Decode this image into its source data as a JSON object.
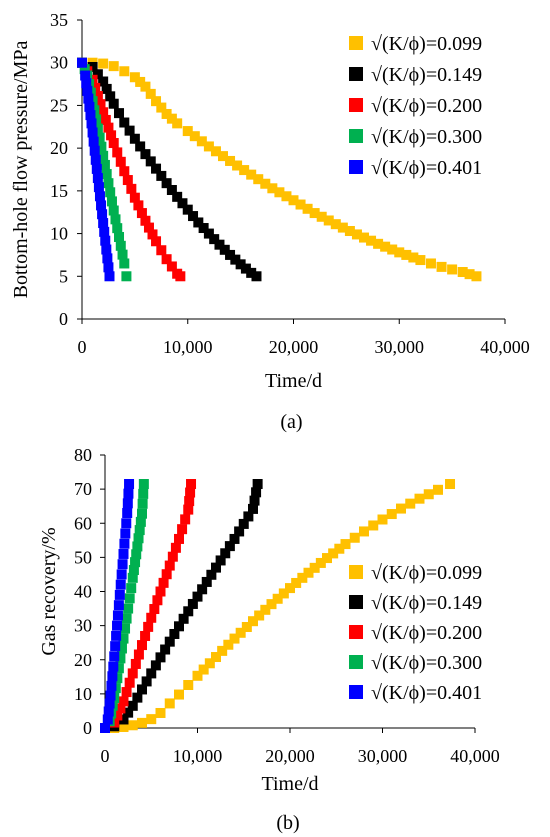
{
  "figure": {
    "panels": [
      {
        "caption": "(a)",
        "xlabel": "Time/d",
        "ylabel": "Bottom-hole flow pressure/MPa",
        "xticks": [
          "0",
          "10,000",
          "20,000",
          "30,000",
          "40,000"
        ],
        "yticks": [
          "0",
          "5",
          "10",
          "15",
          "20",
          "25",
          "30",
          "35"
        ]
      },
      {
        "caption": "(b)",
        "xlabel": "Time/d",
        "ylabel": "Gas recovery/%",
        "xticks": [
          "0",
          "10,000",
          "20,000",
          "30,000",
          "40,000"
        ],
        "yticks": [
          "0",
          "10",
          "20",
          "30",
          "40",
          "50",
          "60",
          "70",
          "80"
        ]
      }
    ]
  },
  "chart_data": [
    {
      "type": "scatter",
      "title": "",
      "caption": "(a)",
      "xlabel": "Time/d",
      "ylabel": "Bottom-hole flow pressure/MPa",
      "xlim": [
        0,
        40000
      ],
      "ylim": [
        0,
        35
      ],
      "grid": false,
      "legend_position": "top-right",
      "series": [
        {
          "name": "√(K/ϕ)=0.099",
          "color": "#FFC000",
          "x": [
            0,
            1000,
            2000,
            3000,
            4000,
            5000,
            6000,
            7000,
            8000,
            9000,
            10000,
            12000,
            14000,
            16000,
            18000,
            20000,
            22000,
            24000,
            26000,
            28000,
            30000,
            32000,
            34000,
            36000,
            37300
          ],
          "y": [
            30,
            30,
            29.9,
            29.6,
            29.0,
            28.3,
            27.2,
            25.5,
            24.0,
            22.9,
            22.0,
            20.2,
            18.5,
            16.9,
            15.3,
            13.9,
            12.4,
            11.1,
            9.9,
            8.8,
            7.8,
            6.9,
            6.1,
            5.5,
            5.0
          ]
        },
        {
          "name": "√(K/ϕ)=0.149",
          "color": "#000000",
          "x": [
            0,
            1000,
            2000,
            3000,
            4000,
            5000,
            6000,
            7000,
            8000,
            9000,
            10000,
            11000,
            12000,
            13000,
            14000,
            15000,
            16000,
            16500
          ],
          "y": [
            30,
            29.5,
            27.8,
            25.2,
            23.0,
            21.1,
            19.3,
            17.6,
            15.9,
            14.3,
            12.8,
            11.3,
            10.0,
            8.7,
            7.5,
            6.4,
            5.4,
            5.0
          ]
        },
        {
          "name": "√(K/ϕ)=0.200",
          "color": "#FF0000",
          "x": [
            0,
            1000,
            2000,
            3000,
            4000,
            5000,
            6000,
            7000,
            8000,
            9000,
            9300
          ],
          "y": [
            30,
            28.0,
            24.2,
            20.6,
            17.3,
            14.2,
            11.5,
            9.1,
            7.0,
            5.3,
            5.0
          ]
        },
        {
          "name": "√(K/ϕ)=0.300",
          "color": "#00B050",
          "x": [
            0,
            500,
            1000,
            1500,
            2000,
            2500,
            3000,
            3500,
            4000,
            4200
          ],
          "y": [
            30,
            28.5,
            25.5,
            22.3,
            19.1,
            15.9,
            12.7,
            9.6,
            6.5,
            5.0
          ]
        },
        {
          "name": "√(K/ϕ)=0.401",
          "color": "#0000FF",
          "x": [
            0,
            300,
            600,
            900,
            1200,
            1500,
            1800,
            2100,
            2400,
            2600
          ],
          "y": [
            30,
            28.5,
            25.8,
            22.9,
            19.7,
            16.5,
            13.3,
            10.2,
            7.1,
            5.0
          ]
        }
      ]
    },
    {
      "type": "scatter",
      "title": "",
      "caption": "(b)",
      "xlabel": "Time/d",
      "ylabel": "Gas recovery/%",
      "xlim": [
        0,
        40000
      ],
      "ylim": [
        0,
        80
      ],
      "grid": false,
      "legend_position": "bottom-right",
      "series": [
        {
          "name": "√(K/ϕ)=0.099",
          "color": "#FFC000",
          "x": [
            0,
            1000,
            2000,
            3000,
            4000,
            5000,
            6000,
            7000,
            8000,
            9000,
            10000,
            12000,
            14000,
            16000,
            18000,
            20000,
            22000,
            24000,
            26000,
            28000,
            30000,
            32000,
            34000,
            36000,
            37300
          ],
          "y": [
            0,
            0,
            0.3,
            0.8,
            1.5,
            2.6,
            4.4,
            7.2,
            9.8,
            12.6,
            15.3,
            20.8,
            26.2,
            31.3,
            36.3,
            41.0,
            45.5,
            49.8,
            53.9,
            57.6,
            61.1,
            64.3,
            67.2,
            69.8,
            71.5
          ]
        },
        {
          "name": "√(K/ϕ)=0.149",
          "color": "#000000",
          "x": [
            0,
            1000,
            2000,
            3000,
            4000,
            5000,
            6000,
            7000,
            8000,
            9000,
            10000,
            11000,
            12000,
            13000,
            14000,
            15000,
            16000,
            16500
          ],
          "y": [
            0,
            0.5,
            2.5,
            6.5,
            11.3,
            16.0,
            20.7,
            25.3,
            29.8,
            34.2,
            38.5,
            42.8,
            47.0,
            51.2,
            55.4,
            59.8,
            64.2,
            71.5
          ]
        },
        {
          "name": "√(K/ϕ)=0.200",
          "color": "#FF0000",
          "x": [
            0,
            1000,
            2000,
            3000,
            4000,
            5000,
            6000,
            7000,
            8000,
            9000,
            9300
          ],
          "y": [
            0,
            1.6,
            7.8,
            16.0,
            24.3,
            32.3,
            40.0,
            47.6,
            55.4,
            64.0,
            71.5
          ]
        },
        {
          "name": "√(K/ϕ)=0.300",
          "color": "#00B050",
          "x": [
            0,
            500,
            1000,
            1500,
            2000,
            2500,
            3000,
            3500,
            4000,
            4200
          ],
          "y": [
            0,
            2.0,
            8.8,
            17.5,
            26.2,
            35.0,
            44.0,
            53.2,
            62.8,
            71.5
          ]
        },
        {
          "name": "√(K/ϕ)=0.401",
          "color": "#0000FF",
          "x": [
            0,
            300,
            600,
            900,
            1200,
            1500,
            1800,
            2100,
            2400,
            2600
          ],
          "y": [
            0,
            2.5,
            9.5,
            18.0,
            27.0,
            36.0,
            45.0,
            54.0,
            63.0,
            71.5
          ]
        }
      ]
    }
  ]
}
